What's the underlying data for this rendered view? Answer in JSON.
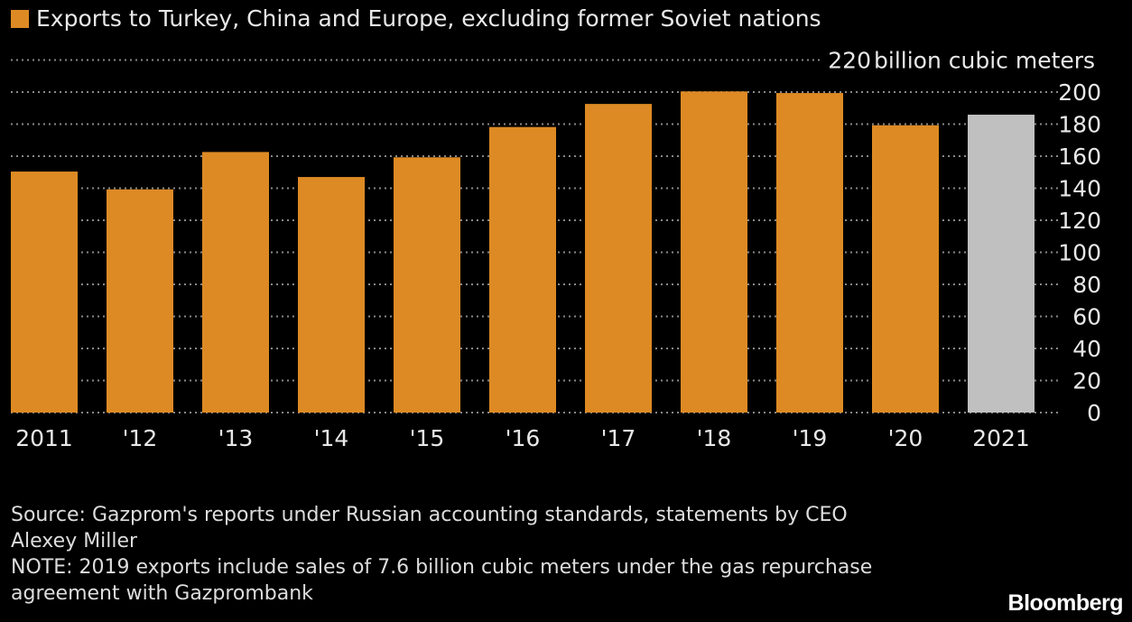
{
  "chart_data": {
    "type": "bar",
    "legend": [
      {
        "name": "Exports to Turkey, China and Europe, excluding former Soviet nations",
        "color": "#dd8a24"
      }
    ],
    "legend_placement": "top-left",
    "categories": [
      "2011",
      "'12",
      "'13",
      "'14",
      "'15",
      "'16",
      "'17",
      "'18",
      "'19",
      "'20",
      "2021"
    ],
    "values": [
      150.4,
      139.3,
      162.6,
      147,
      159.3,
      178.2,
      192.6,
      200.4,
      199.4,
      179.3,
      185.9
    ],
    "colors": [
      "#dd8a24",
      "#dd8a24",
      "#dd8a24",
      "#dd8a24",
      "#dd8a24",
      "#dd8a24",
      "#dd8a24",
      "#dd8a24",
      "#dd8a24",
      "#dd8a24",
      "#c0c0c0"
    ],
    "yunit": "billion cubic meters",
    "yticks": [
      0,
      20,
      40,
      60,
      80,
      100,
      120,
      140,
      160,
      180,
      200,
      220
    ],
    "ylim": [
      0,
      220
    ],
    "yaxis_position": "right",
    "grid": true
  },
  "footer": {
    "source": "Source: Gazprom's reports under Russian accounting standards, statements by CEO Alexey Miller",
    "note": "NOTE: 2019 exports include sales of 7.6 billion cubic meters under the gas repurchase agreement with Gazprombank",
    "logo": "Bloomberg"
  }
}
